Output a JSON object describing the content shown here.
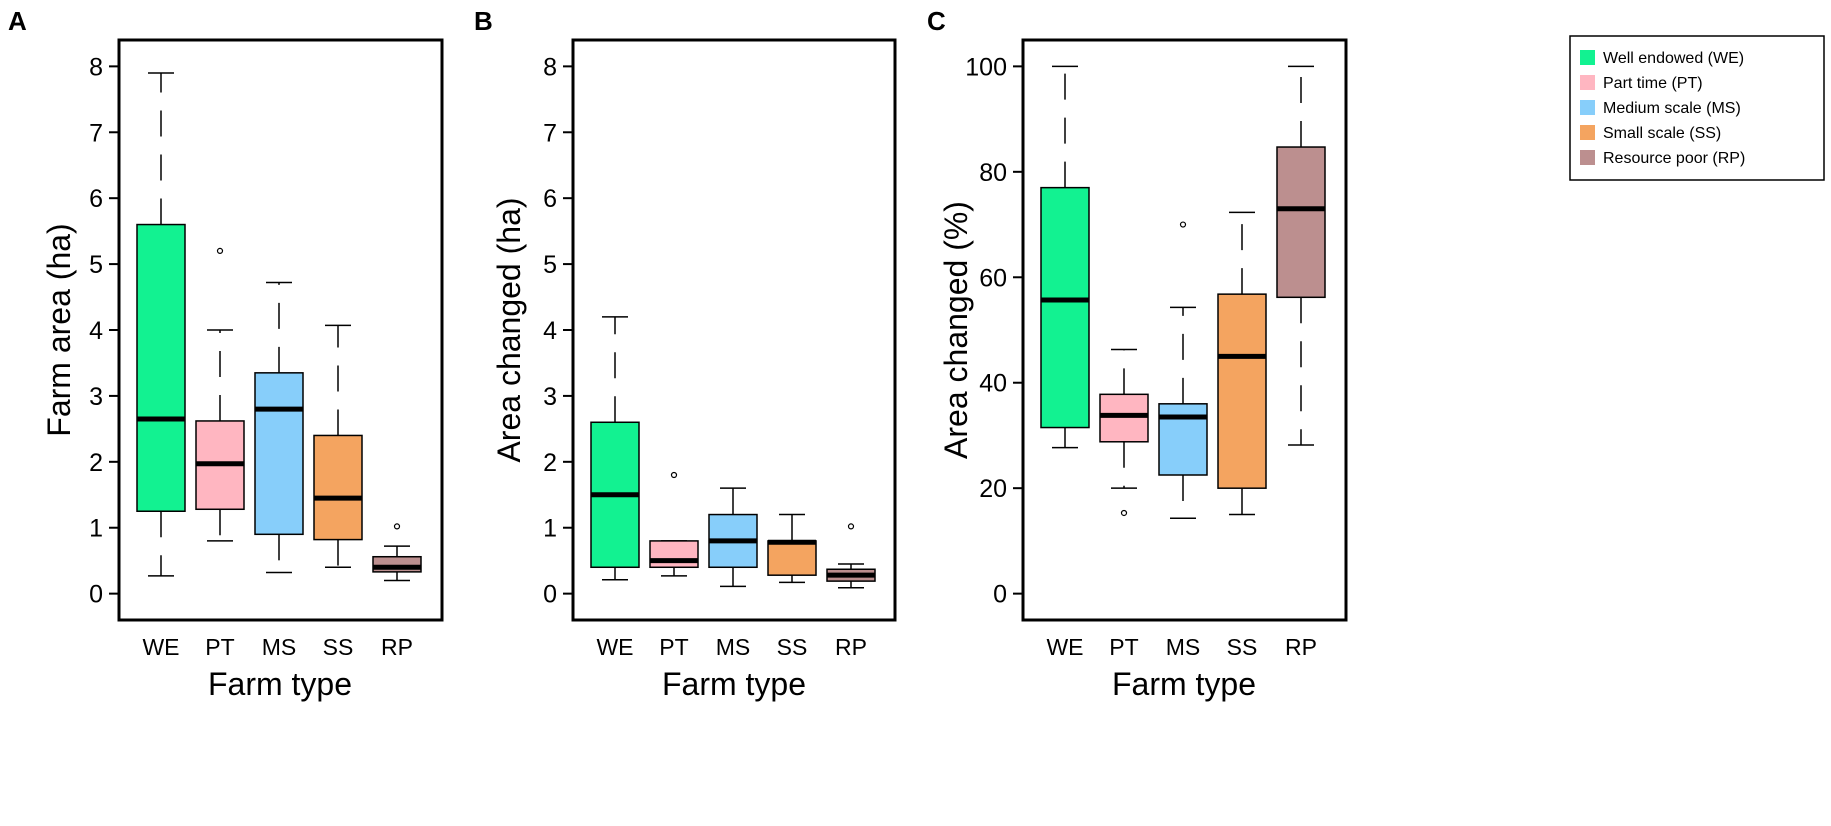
{
  "chart_data": [
    {
      "type": "box",
      "panel_label": "A",
      "xlabel": "Farm type",
      "ylabel": "Farm area (ha)",
      "ylim": [
        -0.4,
        8.4
      ],
      "yticks": [
        "0",
        "1",
        "2",
        "3",
        "4",
        "5",
        "6",
        "7",
        "8"
      ],
      "ytick_values": [
        0,
        1,
        2,
        3,
        4,
        5,
        6,
        7,
        8
      ],
      "categories": [
        "WE",
        "PT",
        "MS",
        "SS",
        "RP"
      ],
      "boxes": [
        {
          "q1": 1.25,
          "median": 2.65,
          "q3": 5.6,
          "whisker_low": 0.27,
          "whisker_high": 7.9,
          "outliers": []
        },
        {
          "q1": 1.28,
          "median": 1.97,
          "q3": 2.62,
          "whisker_low": 0.8,
          "whisker_high": 4.0,
          "outliers": [
            5.2
          ]
        },
        {
          "q1": 0.9,
          "median": 2.8,
          "q3": 3.35,
          "whisker_low": 0.32,
          "whisker_high": 4.72,
          "outliers": []
        },
        {
          "q1": 0.82,
          "median": 1.45,
          "q3": 2.4,
          "whisker_low": 0.4,
          "whisker_high": 4.07,
          "outliers": []
        },
        {
          "q1": 0.33,
          "median": 0.4,
          "q3": 0.56,
          "whisker_low": 0.2,
          "whisker_high": 0.72,
          "outliers": [
            1.02
          ]
        }
      ]
    },
    {
      "type": "box",
      "panel_label": "B",
      "xlabel": "Farm type",
      "ylabel": "Area changed (ha)",
      "ylim": [
        -0.4,
        8.4
      ],
      "yticks": [
        "0",
        "1",
        "2",
        "3",
        "4",
        "5",
        "6",
        "7",
        "8"
      ],
      "ytick_values": [
        0,
        1,
        2,
        3,
        4,
        5,
        6,
        7,
        8
      ],
      "categories": [
        "WE",
        "PT",
        "MS",
        "SS",
        "RP"
      ],
      "boxes": [
        {
          "q1": 0.4,
          "median": 1.5,
          "q3": 2.6,
          "whisker_low": 0.21,
          "whisker_high": 4.2,
          "outliers": []
        },
        {
          "q1": 0.4,
          "median": 0.5,
          "q3": 0.8,
          "whisker_low": 0.27,
          "whisker_high": 0.8,
          "outliers": [
            1.8
          ]
        },
        {
          "q1": 0.4,
          "median": 0.8,
          "q3": 1.2,
          "whisker_low": 0.11,
          "whisker_high": 1.6,
          "outliers": []
        },
        {
          "q1": 0.28,
          "median": 0.78,
          "q3": 0.8,
          "whisker_low": 0.17,
          "whisker_high": 1.2,
          "outliers": []
        },
        {
          "q1": 0.19,
          "median": 0.28,
          "q3": 0.37,
          "whisker_low": 0.09,
          "whisker_high": 0.45,
          "outliers": [
            1.02
          ]
        }
      ]
    },
    {
      "type": "box",
      "panel_label": "C",
      "xlabel": "Farm type",
      "ylabel": "Area changed (%)",
      "ylim": [
        -5,
        105
      ],
      "yticks": [
        "0",
        "20",
        "40",
        "60",
        "80",
        "100"
      ],
      "ytick_values": [
        0,
        20,
        40,
        60,
        80,
        100
      ],
      "categories": [
        "WE",
        "PT",
        "MS",
        "SS",
        "RP"
      ],
      "boxes": [
        {
          "q1": 31.5,
          "median": 55.7,
          "q3": 77.0,
          "whisker_low": 27.7,
          "whisker_high": 100.0,
          "outliers": []
        },
        {
          "q1": 28.8,
          "median": 33.8,
          "q3": 37.8,
          "whisker_low": 20.0,
          "whisker_high": 46.3,
          "outliers": [
            15.3
          ]
        },
        {
          "q1": 22.5,
          "median": 33.5,
          "q3": 36.0,
          "whisker_low": 14.3,
          "whisker_high": 54.3,
          "outliers": [
            70.0
          ]
        },
        {
          "q1": 20.0,
          "median": 45.0,
          "q3": 56.8,
          "whisker_low": 15.0,
          "whisker_high": 72.3,
          "outliers": []
        },
        {
          "q1": 56.2,
          "median": 73.0,
          "q3": 84.7,
          "whisker_low": 28.2,
          "whisker_high": 100.0,
          "outliers": []
        }
      ]
    }
  ],
  "legend": {
    "placement": "top-right",
    "entries": [
      {
        "label": "Well endowed (WE)",
        "color": "#12f291"
      },
      {
        "label": "Part time (PT)",
        "color": "#ffb6c1"
      },
      {
        "label": "Medium scale (MS)",
        "color": "#87cefa"
      },
      {
        "label": "Small scale (SS)",
        "color": "#f4a460"
      },
      {
        "label": "Resource poor (RP)",
        "color": "#bc8f8f"
      }
    ]
  },
  "colors": {
    "WE": "#12f291",
    "PT": "#ffb6c1",
    "MS": "#87cefa",
    "SS": "#f4a460",
    "RP": "#bc8f8f"
  }
}
